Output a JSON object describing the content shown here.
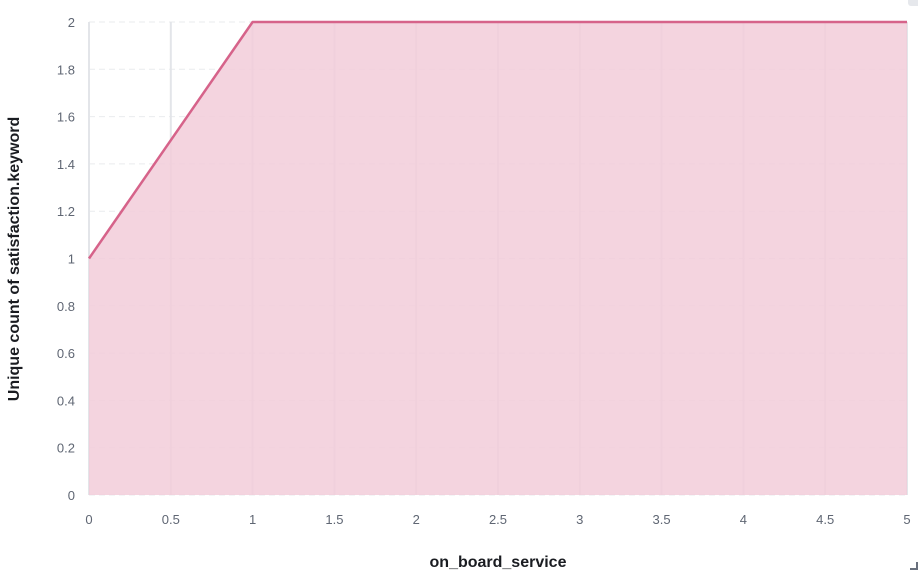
{
  "chart_data": {
    "type": "area",
    "xlabel": "on_board_service",
    "ylabel": "Unique count of satisfaction.keyword",
    "x": [
      0,
      1,
      2,
      3,
      4,
      5
    ],
    "series": [
      {
        "values": [
          1,
          2,
          2,
          2,
          2,
          2
        ]
      }
    ],
    "xlim": [
      0,
      5
    ],
    "ylim": [
      0,
      2
    ],
    "xticks": [
      "0",
      "0.5",
      "1",
      "1.5",
      "2",
      "2.5",
      "3",
      "3.5",
      "4",
      "4.5",
      "5"
    ],
    "yticks": [
      "0",
      "0.2",
      "0.4",
      "0.6",
      "0.8",
      "1",
      "1.2",
      "1.4",
      "1.6",
      "1.8",
      "2"
    ],
    "grid": true,
    "colors": {
      "line": "#d6638a",
      "fill": "#f2cdd9",
      "grid": "#e9ebee"
    }
  }
}
